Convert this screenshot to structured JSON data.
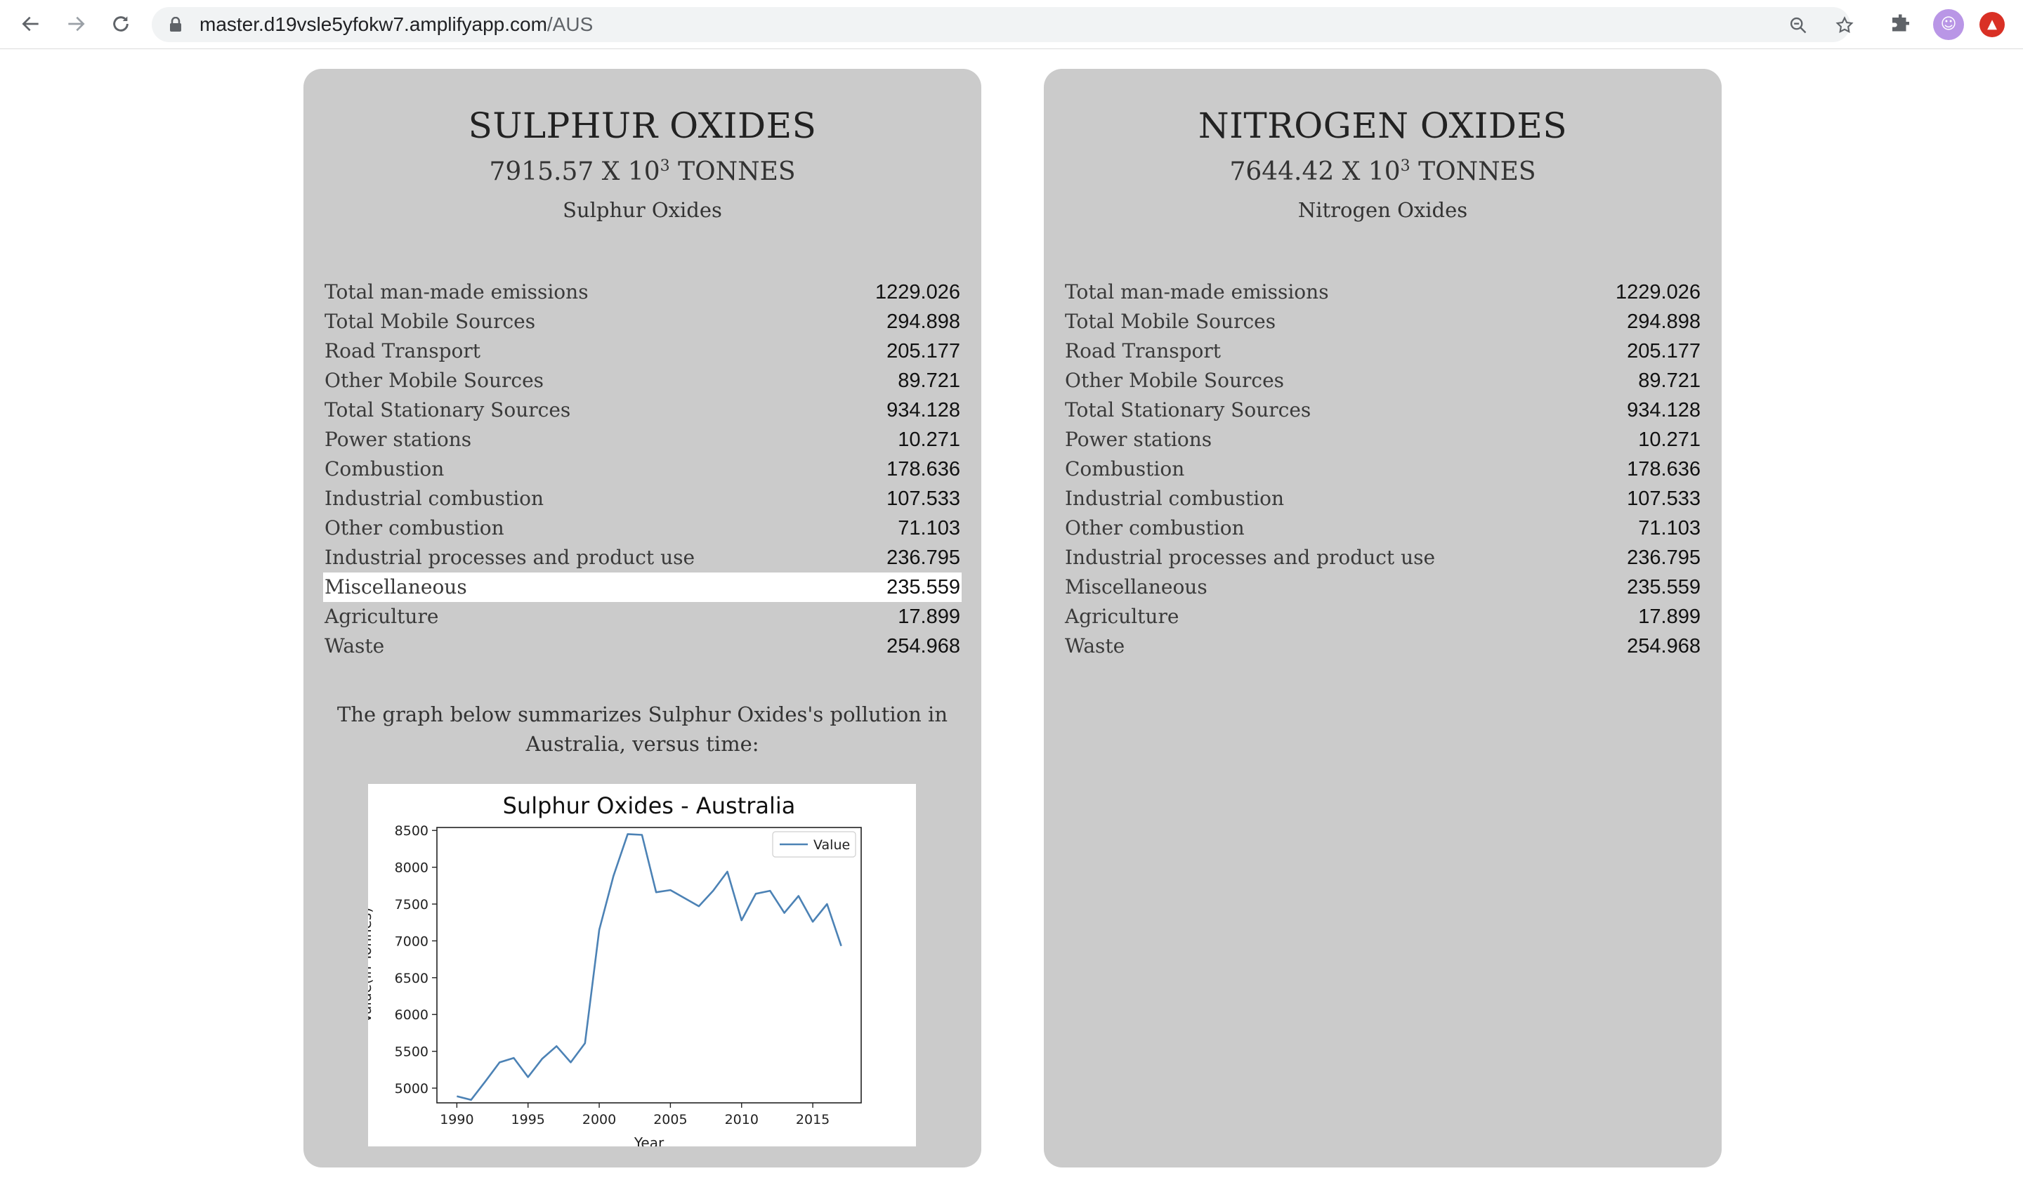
{
  "browser": {
    "url_host": "master.d19vsle5yfokw7.amplifyapp.com",
    "url_path": "/AUS"
  },
  "cards": [
    {
      "title": "SULPHUR OXIDES",
      "amount": "7915.57 X 10",
      "amount_exp": "3",
      "amount_unit": "TONNES",
      "subtitle": "Sulphur Oxides",
      "rows": [
        {
          "label": "Total man-made emissions",
          "value": "1229.026"
        },
        {
          "label": "Total Mobile Sources",
          "value": "294.898"
        },
        {
          "label": "Road Transport",
          "value": "205.177"
        },
        {
          "label": "Other Mobile Sources",
          "value": "89.721"
        },
        {
          "label": "Total Stationary Sources",
          "value": "934.128"
        },
        {
          "label": "Power stations",
          "value": "10.271"
        },
        {
          "label": "Combustion",
          "value": "178.636"
        },
        {
          "label": "Industrial combustion",
          "value": "107.533"
        },
        {
          "label": "Other combustion",
          "value": "71.103"
        },
        {
          "label": "Industrial processes and product use",
          "value": "236.795"
        },
        {
          "label": "Miscellaneous",
          "value": "235.559"
        },
        {
          "label": "Agriculture",
          "value": "17.899"
        },
        {
          "label": "Waste",
          "value": "254.968"
        }
      ],
      "summary": "The graph below summarizes Sulphur Oxides's pollution in Australia, versus time:"
    },
    {
      "title": "NITROGEN OXIDES",
      "amount": "7644.42 X 10",
      "amount_exp": "3",
      "amount_unit": "TONNES",
      "subtitle": "Nitrogen Oxides",
      "rows": [
        {
          "label": "Total man-made emissions",
          "value": "1229.026"
        },
        {
          "label": "Total Mobile Sources",
          "value": "294.898"
        },
        {
          "label": "Road Transport",
          "value": "205.177"
        },
        {
          "label": "Other Mobile Sources",
          "value": "89.721"
        },
        {
          "label": "Total Stationary Sources",
          "value": "934.128"
        },
        {
          "label": "Power stations",
          "value": "10.271"
        },
        {
          "label": "Combustion",
          "value": "178.636"
        },
        {
          "label": "Industrial combustion",
          "value": "107.533"
        },
        {
          "label": "Other combustion",
          "value": "71.103"
        },
        {
          "label": "Industrial processes and product use",
          "value": "236.795"
        },
        {
          "label": "Miscellaneous",
          "value": "235.559"
        },
        {
          "label": "Agriculture",
          "value": "17.899"
        },
        {
          "label": "Waste",
          "value": "254.968"
        }
      ]
    }
  ],
  "chart_data": {
    "type": "line",
    "title": "Sulphur Oxides - Australia",
    "xlabel": "Year",
    "ylabel": "Value(in Tonnes)",
    "x": [
      1990,
      1991,
      1992,
      1993,
      1994,
      1995,
      1996,
      1997,
      1998,
      1999,
      2000,
      2001,
      2002,
      2003,
      2004,
      2005,
      2006,
      2007,
      2008,
      2009,
      2010,
      2011,
      2012,
      2013,
      2014,
      2015,
      2016,
      2017
    ],
    "series": [
      {
        "name": "Value",
        "color": "#4c82b5",
        "values": [
          4890,
          4840,
          5090,
          5350,
          5410,
          5150,
          5400,
          5570,
          5350,
          5610,
          7150,
          7880,
          8450,
          8440,
          7660,
          7690,
          7580,
          7470,
          7680,
          7940,
          7280,
          7640,
          7680,
          7380,
          7610,
          7260,
          7500,
          6930
        ]
      }
    ],
    "xlim": [
      1988.6,
      2018.4
    ],
    "ylim": [
      4800,
      8540
    ],
    "xticks": [
      1990,
      1995,
      2000,
      2005,
      2010,
      2015
    ],
    "yticks": [
      5000,
      5500,
      6000,
      6500,
      7000,
      7500,
      8000,
      8500
    ],
    "legend": "top-right",
    "grid": false
  }
}
